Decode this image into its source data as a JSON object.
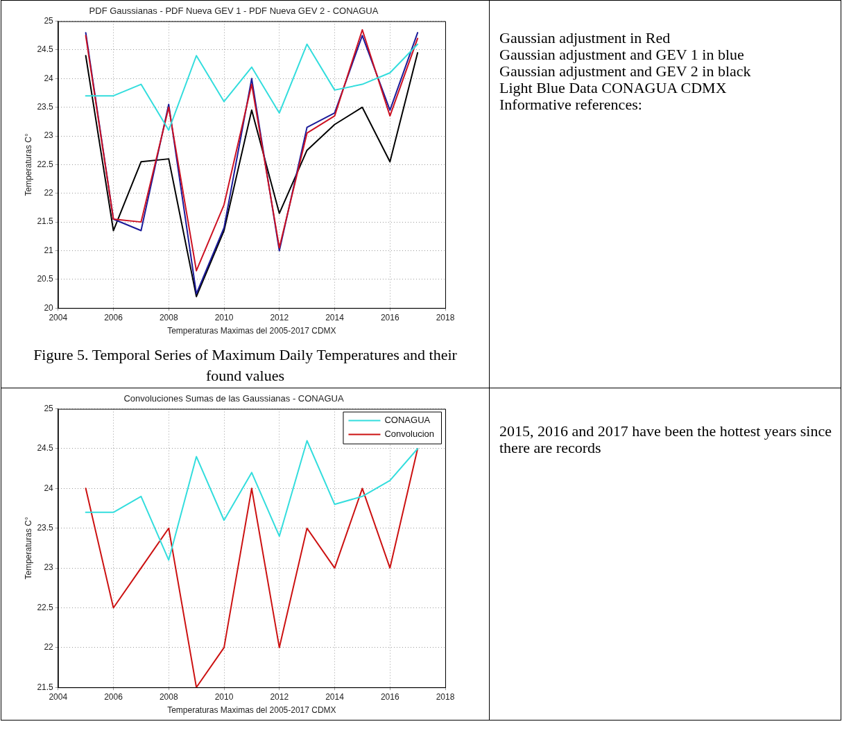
{
  "chart_data": [
    {
      "type": "line",
      "title": "PDF Gaussianas - PDF Nueva GEV 1 - PDF Nueva GEV 2 - CONAGUA",
      "xlabel": "Temperaturas Maximas del 2005-2017 CDMX",
      "ylabel": "Temperaturas C°",
      "x": [
        2005,
        2006,
        2007,
        2008,
        2009,
        2010,
        2011,
        2012,
        2013,
        2014,
        2015,
        2016,
        2017
      ],
      "series": [
        {
          "color": "#33dddd",
          "values": [
            23.7,
            23.7,
            23.9,
            23.1,
            24.4,
            23.6,
            24.2,
            23.4,
            24.6,
            23.8,
            23.9,
            24.1,
            24.6
          ]
        },
        {
          "color": "#cc1122",
          "values": [
            24.75,
            21.55,
            21.5,
            23.5,
            20.65,
            21.8,
            23.9,
            21.05,
            23.05,
            23.35,
            24.85,
            23.35,
            24.7
          ]
        },
        {
          "color": "#1a1a99",
          "values": [
            24.8,
            21.55,
            21.35,
            23.55,
            20.25,
            21.4,
            24.0,
            21.0,
            23.15,
            23.4,
            24.75,
            23.45,
            24.8
          ]
        },
        {
          "color": "#000000",
          "values": [
            24.4,
            21.35,
            22.55,
            22.6,
            20.2,
            21.35,
            23.45,
            21.65,
            22.75,
            23.2,
            23.5,
            22.55,
            24.45
          ]
        }
      ],
      "xlim": [
        2004,
        2018
      ],
      "xticks": [
        2004,
        2006,
        2008,
        2010,
        2012,
        2014,
        2016,
        2018
      ],
      "ylim": [
        20,
        25
      ],
      "yticks": [
        20,
        20.5,
        21,
        21.5,
        22,
        22.5,
        23,
        23.5,
        24,
        24.5,
        25
      ],
      "grid": true,
      "marker": "none",
      "line_style": "solid",
      "legend": false,
      "annotations": [
        "Gaussian adjustment in Red",
        "Gaussian adjustment and GEV 1 in blue",
        "Gaussian adjustment and GEV 2 in black",
        "Light Blue Data CONAGUA CDMX",
        "Informative references:",
        "Figure 5. Temporal Series of Maximum Daily Temperatures and their found values"
      ]
    },
    {
      "type": "line",
      "title": "Convoluciones Sumas de las Gaussianas - CONAGUA",
      "xlabel": "Temperaturas Maximas del 2005-2017 CDMX",
      "ylabel": "Temperaturas C°",
      "x": [
        2005,
        2006,
        2007,
        2008,
        2009,
        2010,
        2011,
        2012,
        2013,
        2014,
        2015,
        2016,
        2017
      ],
      "series": [
        {
          "name": "CONAGUA",
          "color": "#33dddd",
          "values": [
            23.7,
            23.7,
            23.9,
            23.1,
            24.4,
            23.6,
            24.2,
            23.4,
            24.6,
            23.8,
            23.9,
            24.1,
            24.5
          ]
        },
        {
          "name": "Convolucion",
          "color": "#cc1111",
          "values": [
            24,
            22.5,
            23,
            23.5,
            21.5,
            22,
            24,
            22,
            23.5,
            23,
            24,
            23,
            24.5
          ]
        }
      ],
      "xlim": [
        2004,
        2018
      ],
      "xticks": [
        2004,
        2006,
        2008,
        2010,
        2012,
        2014,
        2016,
        2018
      ],
      "ylim": [
        21.5,
        25
      ],
      "yticks": [
        21.5,
        22,
        22.5,
        23,
        23.5,
        24,
        24.5,
        25
      ],
      "grid": true,
      "marker": "none",
      "line_style": "solid",
      "legend": "top right",
      "annotations": [
        "2015, 2016 and 2017 have been the hottest years since there are records"
      ]
    }
  ]
}
